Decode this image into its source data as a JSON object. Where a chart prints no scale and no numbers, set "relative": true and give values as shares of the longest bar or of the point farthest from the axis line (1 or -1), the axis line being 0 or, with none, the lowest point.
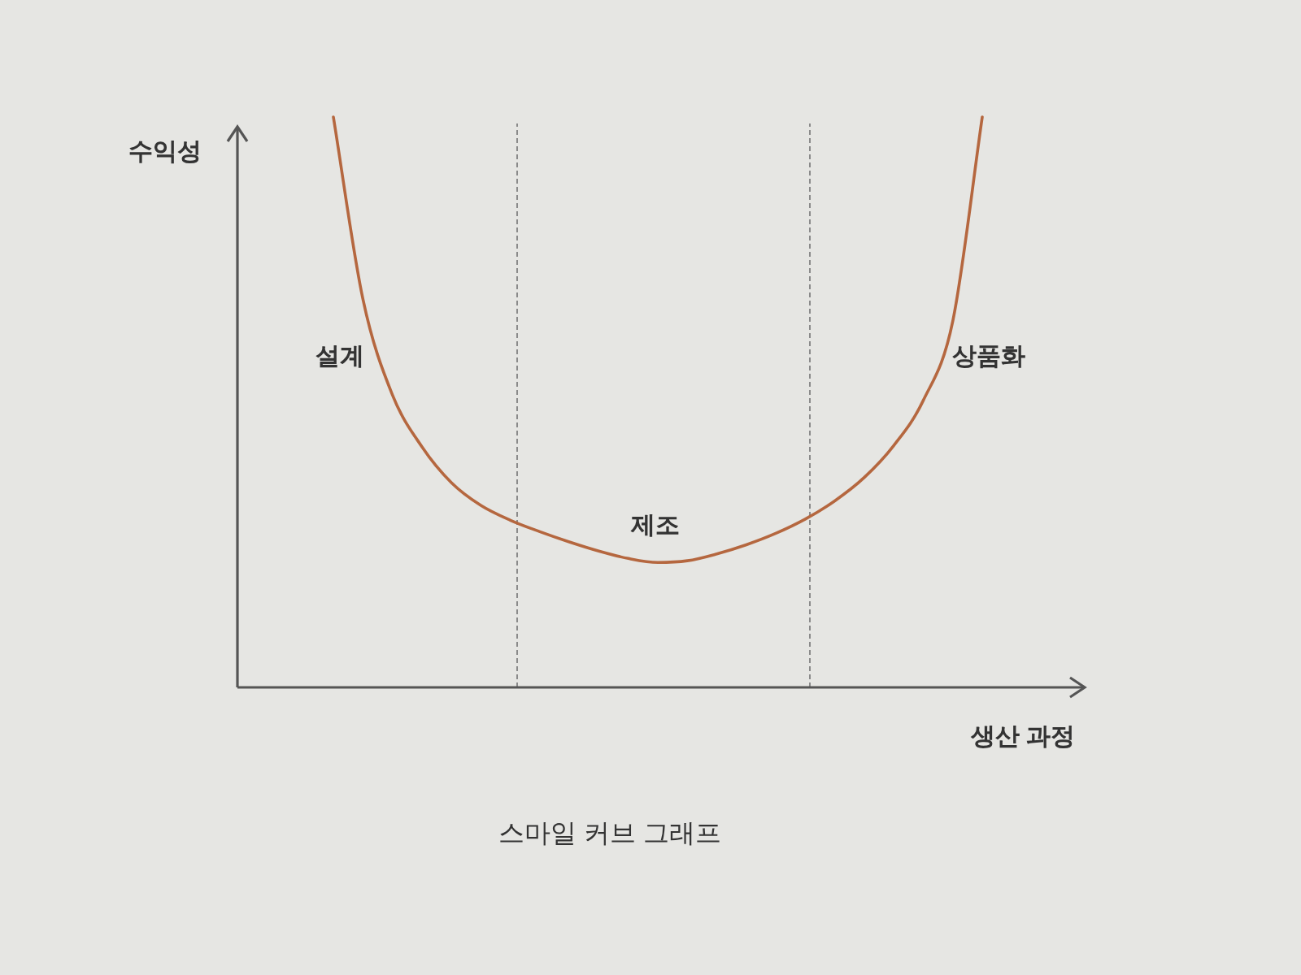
{
  "chart_data": {
    "type": "line",
    "title": "스마일 커브 그래프",
    "xlabel": "생산 과정",
    "ylabel": "수익성",
    "categories": [
      null,
      null,
      null,
      null,
      null,
      null,
      null,
      null,
      null,
      null,
      null,
      null,
      null,
      null,
      null,
      null,
      null,
      null,
      null,
      null,
      null,
      null,
      null
    ],
    "relative": true,
    "series": [
      {
        "color": "#b5673f",
        "values": [
          1,
          0.681,
          0.513,
          0.422,
          0.359,
          0.319,
          0.293,
          0.273,
          0.255,
          0.239,
          0.226,
          0.219,
          0.222,
          0.234,
          0.25,
          0.27,
          0.295,
          0.327,
          0.368,
          0.424,
          0.503,
          0.642,
          1
        ]
      }
    ],
    "annotations": [
      "설계",
      "제조",
      "상품화"
    ]
  }
}
